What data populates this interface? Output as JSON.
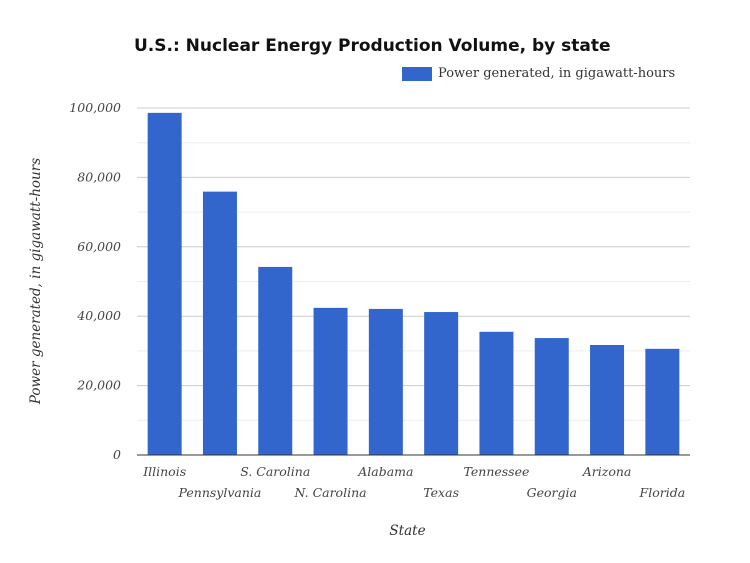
{
  "chart_data": {
    "type": "bar",
    "title": "U.S.: Nuclear Energy Production Volume, by state",
    "xlabel": "State",
    "ylabel": "Power generated, in gigawatt-hours",
    "ylim": [
      0,
      100000
    ],
    "yticks": [
      "0",
      "20,000",
      "40,000",
      "60,000",
      "80,000",
      "100,000"
    ],
    "ytick_values": [
      0,
      20000,
      40000,
      60000,
      80000,
      100000
    ],
    "grid": true,
    "legend_position": "top-right",
    "categories": [
      "Illinois",
      "Pennsylvania",
      "S. Carolina",
      "N. Carolina",
      "Alabama",
      "Texas",
      "Tennessee",
      "Georgia",
      "Arizona",
      "Florida"
    ],
    "series": [
      {
        "name": "Power generated, in gigawatt-hours",
        "color": "#3366cc",
        "values": [
          98600,
          75900,
          54200,
          42400,
          42100,
          41200,
          35500,
          33700,
          31700,
          30600
        ]
      }
    ]
  }
}
